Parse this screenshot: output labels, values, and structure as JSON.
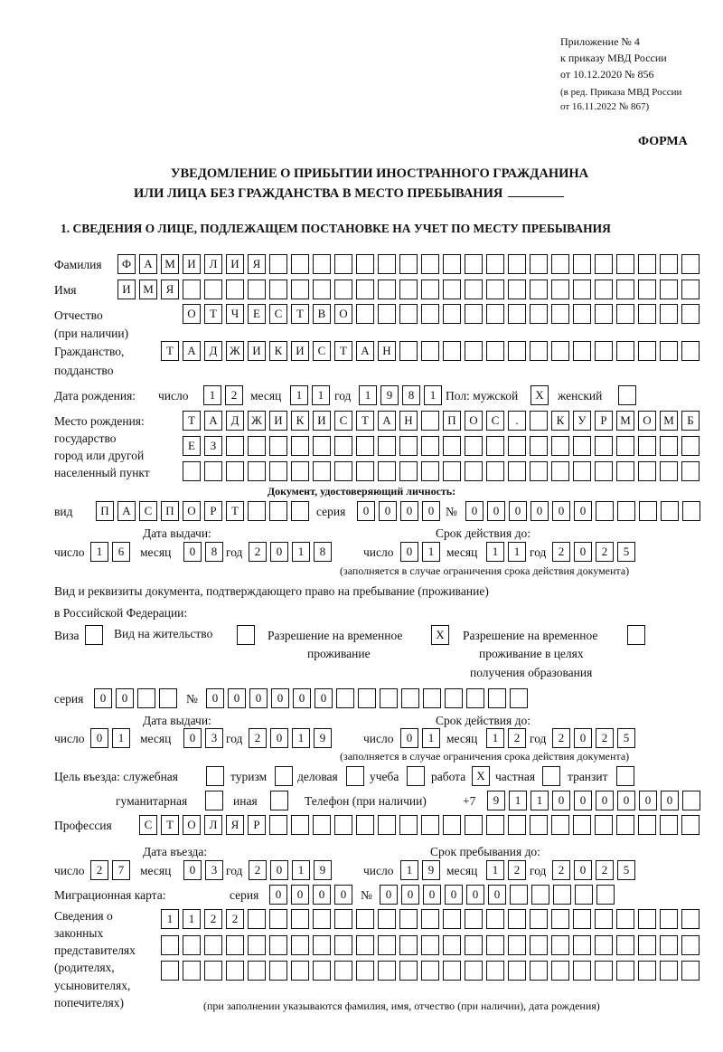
{
  "header": {
    "appendix": [
      "Приложение № 4",
      "к приказу МВД России",
      "от 10.12.2020 № 856"
    ],
    "revision": [
      "(в ред. Приказа МВД России",
      "от 16.11.2022 № 867)"
    ],
    "form_label": "ФОРМА",
    "title_line1": "УВЕДОМЛЕНИЕ О ПРИБЫТИИ ИНОСТРАННОГО ГРАЖДАНИНА",
    "title_line2": "ИЛИ ЛИЦА БЕЗ ГРАЖДАНСТВА В МЕСТО ПРЕБЫВАНИЯ",
    "section1": "1. СВЕДЕНИЯ О ЛИЦЕ, ПОДЛЕЖАЩЕМ ПОСТАНОВКЕ НА УЧЕТ ПО МЕСТУ ПРЕБЫВАНИЯ"
  },
  "labels": {
    "surname": "Фамилия",
    "name": "Имя",
    "patronymic": "Отчество",
    "patronymic_note": "(при наличии)",
    "citizenship": "Гражданство,",
    "citizenship2": "подданство",
    "birth_date": "Дата рождения:",
    "day": "число",
    "month": "месяц",
    "year": "год",
    "sex": "Пол: мужской",
    "female": "женский",
    "birth_place": [
      "Место рождения:",
      "государство",
      "город или другой",
      "населенный пункт"
    ],
    "id_doc": "Документ, удостоверяющий личность:",
    "kind": "вид",
    "series": "серия",
    "number": "№",
    "issue_date": "Дата выдачи:",
    "valid_until": "Срок действия до:",
    "valid_note": "(заполняется в случае ограничения срока действия документа)",
    "permit_doc1": "Вид и реквизиты документа, подтверждающего право на пребывание (проживание)",
    "permit_doc2": "в Российской Федерации:",
    "visa": "Виза",
    "residence": "Вид на жительство",
    "temp_residence": [
      "Разрешение на временное",
      "проживание"
    ],
    "temp_residence_edu": [
      "Разрешение на временное",
      "проживание в целях",
      "получения образования"
    ],
    "purpose": "Цель въезда: служебная",
    "tourism": "туризм",
    "business": "деловая",
    "study": "учеба",
    "work": "работа",
    "private": "частная",
    "transit": "транзит",
    "humanitarian": "гуманитарная",
    "other": "иная",
    "phone": "Телефон (при наличии)",
    "phone_prefix": "+7",
    "profession": "Профессия",
    "entry_date": "Дата въезда:",
    "stay_until": "Срок пребывания до:",
    "migration_card": "Миграционная карта:",
    "representatives": [
      "Сведения о",
      "законных",
      "представителях",
      "(родителях,",
      "усыновителях,",
      "попечителях)"
    ],
    "representatives_note": "(при заполнении указываются фамилия, имя, отчество (при наличии), дата рождения)"
  },
  "values": {
    "surname": "ФАМИЛИЯ",
    "name": "ИМЯ",
    "patronymic": "ОТЧЕСТВО",
    "citizenship": "ТАДЖИКИСТАН",
    "birth_day": "12",
    "birth_month": "11",
    "birth_year": "1981",
    "sex_male": "X",
    "sex_female": "",
    "birth_place1": "ТАДЖИКИСТАН ПОС. КУРМОМБ",
    "birth_place2": "ЕЗ",
    "birth_place3": "",
    "id_kind": "ПАСПОРТ",
    "id_series": "0000",
    "id_number": "000000",
    "id_issue_day": "16",
    "id_issue_month": "08",
    "id_issue_year": "2018",
    "id_valid_day": "01",
    "id_valid_month": "11",
    "id_valid_year": "2025",
    "visa": "",
    "residence": "",
    "temp_residence": "X",
    "temp_residence_edu": "",
    "permit_series": "00",
    "permit_number": "000000",
    "permit_issue_day": "01",
    "permit_issue_month": "03",
    "permit_issue_year": "2019",
    "permit_valid_day": "01",
    "permit_valid_month": "12",
    "permit_valid_year": "2025",
    "purpose_official": "",
    "purpose_tourism": "",
    "purpose_business": "",
    "purpose_study": "",
    "purpose_work": "X",
    "purpose_private": "",
    "purpose_transit": "",
    "purpose_humanitarian": "",
    "purpose_other": "",
    "phone": "911000000",
    "profession": "СТОЛЯР",
    "entry_day": "27",
    "entry_month": "03",
    "entry_year": "2019",
    "stay_day": "19",
    "stay_month": "12",
    "stay_year": "2025",
    "mc_series": "0000",
    "mc_number": "000000",
    "rep1": "1122",
    "rep2": "",
    "rep3": ""
  }
}
